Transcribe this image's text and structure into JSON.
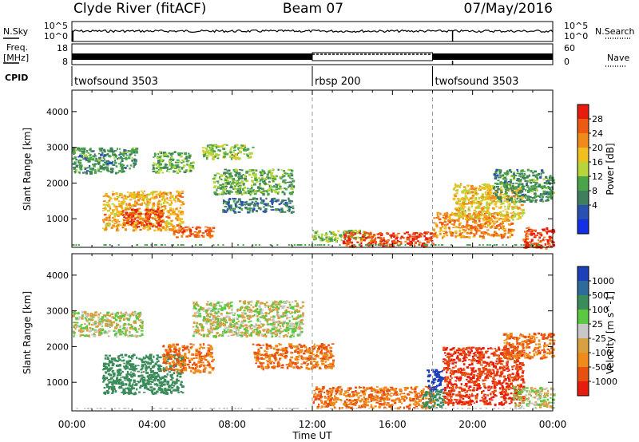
{
  "header": {
    "station": "Clyde River (fitACF)",
    "beam": "Beam 07",
    "date": "07/May/2016"
  },
  "nsky_panel": {
    "left_label": "N.Sky",
    "right_label": "N.Search",
    "left_ticks": [
      "10^5",
      "10^0"
    ],
    "right_ticks": [
      "10^5",
      "10^0"
    ]
  },
  "freq_panel": {
    "left_label_line1": "Freq.",
    "left_label_line2": "[MHz]",
    "right_label": "Nave",
    "left_ticks": [
      "18",
      "8"
    ],
    "right_ticks": [
      "60",
      "0"
    ]
  },
  "cpid_panel": {
    "label": "CPID",
    "programs": [
      {
        "name": "twofsound 3503",
        "start_hour": 0
      },
      {
        "name": "rbsp 200",
        "start_hour": 12
      },
      {
        "name": "twofsound 3503",
        "start_hour": 18
      }
    ]
  },
  "colors": {
    "power_scale": [
      "#1430e6",
      "#2a50b0",
      "#3f7f5e",
      "#4aa44a",
      "#b7d43a",
      "#f0c020",
      "#f08a1a",
      "#ec5a14",
      "#e81c0c"
    ],
    "velocity_scale": [
      "#1d3fb8",
      "#2e6a9a",
      "#3a8c5a",
      "#5ac840",
      "#c8c8c8",
      "#d8a040",
      "#f08a1a",
      "#e85010",
      "#e81c0c"
    ],
    "ground_scatter": "#c0c0c0"
  },
  "chart_data": [
    {
      "type": "heatmap",
      "title": "",
      "xlabel": "Time UT",
      "ylabel": "Slant Range [km]",
      "xlim": [
        0,
        24
      ],
      "ylim": [
        200,
        4600
      ],
      "x_ticks": [
        "00:00",
        "04:00",
        "08:00",
        "12:00",
        "16:00",
        "20:00",
        "00:00"
      ],
      "y_ticks": [
        1000,
        2000,
        3000,
        4000
      ],
      "colorbar": {
        "label": "Power [dB]",
        "ticks": [
          4,
          8,
          12,
          16,
          20,
          24,
          28
        ],
        "range": [
          0,
          30
        ]
      },
      "blobs": [
        {
          "t": [
            0.0,
            3.2
          ],
          "r": [
            2300,
            3000
          ],
          "v": 10
        },
        {
          "t": [
            1.5,
            5.5
          ],
          "r": [
            700,
            1800
          ],
          "v": 20
        },
        {
          "t": [
            2.5,
            4.5
          ],
          "r": [
            800,
            1300
          ],
          "v": 26
        },
        {
          "t": [
            4.0,
            6.0
          ],
          "r": [
            2300,
            2900
          ],
          "v": 12
        },
        {
          "t": [
            6.5,
            9.0
          ],
          "r": [
            2700,
            3100
          ],
          "v": 14
        },
        {
          "t": [
            5.0,
            7.0
          ],
          "r": [
            500,
            800
          ],
          "v": 24
        },
        {
          "t": [
            7.0,
            11.0
          ],
          "r": [
            1700,
            2400
          ],
          "v": 12
        },
        {
          "t": [
            7.5,
            11.0
          ],
          "r": [
            1200,
            1600
          ],
          "v": 8
        },
        {
          "t": [
            12.0,
            15.0
          ],
          "r": [
            400,
            700
          ],
          "v": 14
        },
        {
          "t": [
            13.5,
            18.0
          ],
          "r": [
            250,
            650
          ],
          "v": 27
        },
        {
          "t": [
            18.0,
            22.0
          ],
          "r": [
            500,
            1200
          ],
          "v": 22
        },
        {
          "t": [
            19.0,
            22.5
          ],
          "r": [
            1000,
            2000
          ],
          "v": 18
        },
        {
          "t": [
            21.0,
            24.0
          ],
          "r": [
            1500,
            2400
          ],
          "v": 10
        },
        {
          "t": [
            22.5,
            24.0
          ],
          "r": [
            200,
            800
          ],
          "v": 26
        }
      ]
    },
    {
      "type": "heatmap",
      "title": "",
      "xlabel": "Time UT",
      "ylabel": "Slant Range [km]",
      "xlim": [
        0,
        24
      ],
      "ylim": [
        200,
        4600
      ],
      "x_ticks": [
        "00:00",
        "04:00",
        "08:00",
        "12:00",
        "16:00",
        "20:00",
        "00:00"
      ],
      "y_ticks": [
        1000,
        2000,
        3000,
        4000
      ],
      "colorbar": {
        "label": "Velocity [m s^-1]",
        "ticks": [
          1000,
          500,
          100,
          25,
          -25,
          -100,
          -500,
          -1000
        ]
      },
      "blobs": [
        {
          "t": [
            0.0,
            3.5
          ],
          "r": [
            2300,
            3000
          ],
          "v": 0
        },
        {
          "t": [
            1.5,
            5.5
          ],
          "r": [
            700,
            1800
          ],
          "v": 200
        },
        {
          "t": [
            4.5,
            7.0
          ],
          "r": [
            1300,
            2100
          ],
          "v": -300
        },
        {
          "t": [
            6.0,
            11.5
          ],
          "r": [
            2300,
            3300
          ],
          "v": 0
        },
        {
          "t": [
            9.0,
            13.0
          ],
          "r": [
            1400,
            2100
          ],
          "v": -300
        },
        {
          "t": [
            12.0,
            18.0
          ],
          "r": [
            300,
            900
          ],
          "v": -300
        },
        {
          "t": [
            17.7,
            18.5
          ],
          "r": [
            800,
            1400
          ],
          "v": 900
        },
        {
          "t": [
            17.5,
            18.5
          ],
          "r": [
            300,
            800
          ],
          "v": 120
        },
        {
          "t": [
            18.5,
            22.5
          ],
          "r": [
            400,
            2000
          ],
          "v": -700
        },
        {
          "t": [
            21.5,
            24.0
          ],
          "r": [
            1700,
            2400
          ],
          "v": -300
        },
        {
          "t": [
            22.0,
            24.0
          ],
          "r": [
            300,
            900
          ],
          "v": 0
        }
      ]
    }
  ]
}
